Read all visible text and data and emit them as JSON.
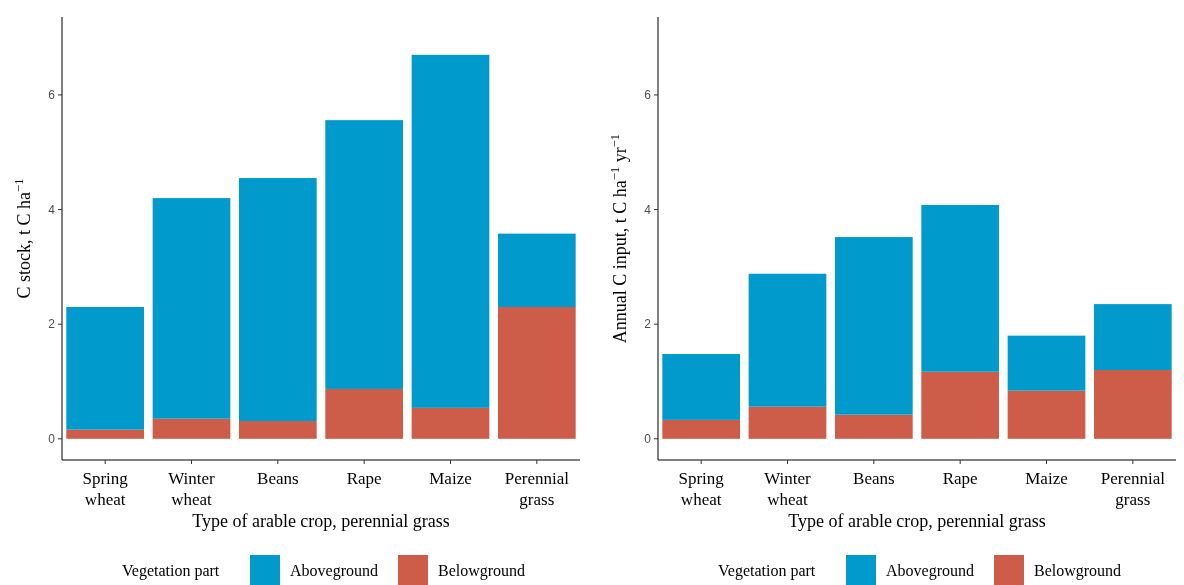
{
  "chart_data": [
    {
      "type": "bar",
      "stacked": true,
      "xlabel": "Type of arable crop, perennial grass",
      "ylabel": "C stock, t C ha$^{−1}$",
      "legend_title": "Vegetation part",
      "legend": "bottom",
      "categories": [
        "Spring wheat",
        "Winter wheat",
        "Beans",
        "Rape",
        "Maize",
        "Perennial grass"
      ],
      "ylim": [
        -0.37,
        7.36
      ],
      "yticks": [
        0,
        2,
        4,
        6
      ],
      "series": [
        {
          "name": "Belowground",
          "color": "#cd5c48",
          "values": [
            0.16,
            0.35,
            0.31,
            0.87,
            0.54,
            2.3
          ]
        },
        {
          "name": "Aboveground",
          "color": "#009acd",
          "values": [
            2.14,
            3.85,
            4.24,
            4.69,
            6.16,
            1.28
          ]
        }
      ]
    },
    {
      "type": "bar",
      "stacked": true,
      "xlabel": "Type of arable crop, perennial grass",
      "ylabel": "Annual C input, t C ha$^{−1}$ yr$^{−1}$",
      "legend_title": "Vegetation part",
      "legend": "bottom",
      "categories": [
        "Spring wheat",
        "Winter wheat",
        "Beans",
        "Rape",
        "Maize",
        "Perennial grass"
      ],
      "ylim": [
        -0.37,
        7.36
      ],
      "yticks": [
        0,
        2,
        4,
        6
      ],
      "series": [
        {
          "name": "Belowground",
          "color": "#cd5c48",
          "values": [
            0.33,
            0.56,
            0.42,
            1.17,
            0.84,
            1.2
          ]
        },
        {
          "name": "Aboveground",
          "color": "#009acd",
          "values": [
            1.15,
            2.32,
            3.1,
            2.91,
            0.96,
            1.15
          ]
        }
      ]
    }
  ]
}
